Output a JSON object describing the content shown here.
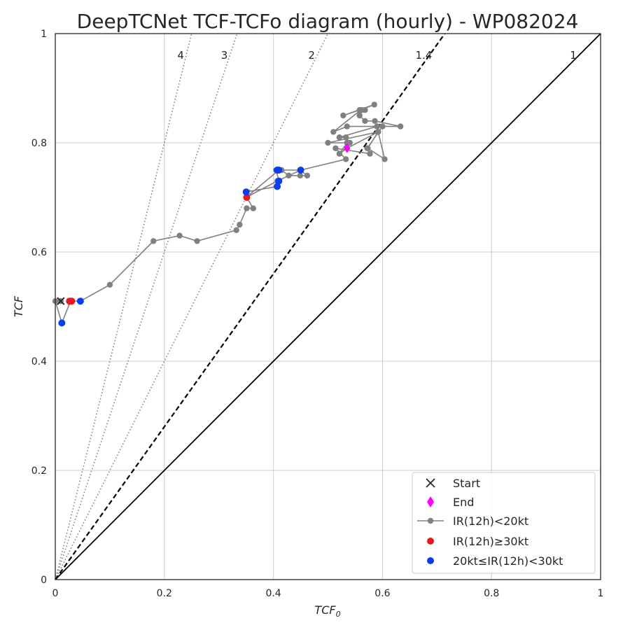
{
  "chart_data": {
    "type": "scatter",
    "title": "DeepTCNet TCF-TCFo diagram (hourly) - WP082024",
    "xlabel": "TCF",
    "xlabel_sub": "0",
    "ylabel": "TCF",
    "xlim": [
      0,
      1
    ],
    "ylim": [
      0,
      1
    ],
    "x_ticks": [
      0,
      0.2,
      0.4,
      0.6,
      0.8,
      1
    ],
    "y_ticks": [
      0,
      0.2,
      0.4,
      0.6,
      0.8,
      1
    ],
    "x_tick_labels": [
      "0",
      "0.2",
      "0.4",
      "0.6",
      "0.8",
      "1"
    ],
    "y_tick_labels": [
      "0",
      "0.2",
      "0.4",
      "0.6",
      "0.8",
      "1"
    ],
    "grid": true,
    "legend_position": "bottom-right",
    "ratio_lines": [
      {
        "ratio": 4,
        "label": "4",
        "style": "dotted",
        "color": "#808080"
      },
      {
        "ratio": 3,
        "label": "3",
        "style": "dotted",
        "color": "#808080"
      },
      {
        "ratio": 2,
        "label": "2",
        "style": "dotted",
        "color": "#808080"
      },
      {
        "ratio": 1.4,
        "label": "1.4",
        "style": "dashed",
        "color": "#000000"
      },
      {
        "ratio": 1,
        "label": "1",
        "style": "solid",
        "color": "#000000"
      }
    ],
    "track": {
      "name": "IR(12h)<20kt",
      "color": "#808080",
      "points": [
        [
          0.01,
          0.51
        ],
        [
          0.0,
          0.51
        ],
        [
          0.012,
          0.47
        ],
        [
          0.028,
          0.51
        ],
        [
          0.046,
          0.51
        ],
        [
          0.1,
          0.54
        ],
        [
          0.18,
          0.62
        ],
        [
          0.228,
          0.63
        ],
        [
          0.26,
          0.62
        ],
        [
          0.332,
          0.64
        ],
        [
          0.338,
          0.65
        ],
        [
          0.351,
          0.68
        ],
        [
          0.363,
          0.68
        ],
        [
          0.351,
          0.7
        ],
        [
          0.35,
          0.71
        ],
        [
          0.407,
          0.72
        ],
        [
          0.41,
          0.73
        ],
        [
          0.405,
          0.75
        ],
        [
          0.415,
          0.75
        ],
        [
          0.428,
          0.74
        ],
        [
          0.449,
          0.74
        ],
        [
          0.462,
          0.74
        ],
        [
          0.449,
          0.75
        ],
        [
          0.41,
          0.75
        ],
        [
          0.35,
          0.7
        ],
        [
          0.407,
          0.73
        ],
        [
          0.45,
          0.75
        ],
        [
          0.533,
          0.77
        ],
        [
          0.514,
          0.79
        ],
        [
          0.577,
          0.78
        ],
        [
          0.572,
          0.79
        ],
        [
          0.6,
          0.83
        ],
        [
          0.633,
          0.83
        ],
        [
          0.586,
          0.84
        ],
        [
          0.568,
          0.84
        ],
        [
          0.558,
          0.85
        ],
        [
          0.562,
          0.86
        ],
        [
          0.568,
          0.86
        ],
        [
          0.558,
          0.86
        ],
        [
          0.528,
          0.85
        ],
        [
          0.585,
          0.87
        ],
        [
          0.56,
          0.86
        ],
        [
          0.51,
          0.82
        ],
        [
          0.535,
          0.83
        ],
        [
          0.59,
          0.83
        ],
        [
          0.592,
          0.82
        ],
        [
          0.5,
          0.8
        ],
        [
          0.535,
          0.8
        ],
        [
          0.521,
          0.78
        ],
        [
          0.535,
          0.79
        ],
        [
          0.54,
          0.8
        ],
        [
          0.533,
          0.81
        ],
        [
          0.521,
          0.81
        ],
        [
          0.59,
          0.83
        ],
        [
          0.592,
          0.82
        ],
        [
          0.573,
          0.79
        ],
        [
          0.604,
          0.77
        ],
        [
          0.592,
          0.82
        ],
        [
          0.535,
          0.79
        ]
      ]
    },
    "red_points": {
      "name": "IR(12h)≥30kt",
      "color": "#e41a1c",
      "points": [
        [
          0.026,
          0.51
        ],
        [
          0.03,
          0.51
        ],
        [
          0.351,
          0.7
        ]
      ]
    },
    "blue_points": {
      "name": "20kt≤IR(12h)<30kt",
      "color": "#0a3cf0",
      "points": [
        [
          0.012,
          0.47
        ],
        [
          0.046,
          0.51
        ],
        [
          0.35,
          0.71
        ],
        [
          0.407,
          0.72
        ],
        [
          0.41,
          0.73
        ],
        [
          0.407,
          0.75
        ],
        [
          0.41,
          0.75
        ],
        [
          0.45,
          0.75
        ]
      ]
    },
    "start": {
      "name": "Start",
      "point": [
        0.01,
        0.51
      ],
      "color": "#262626"
    },
    "end": {
      "name": "End",
      "point": [
        0.535,
        0.79
      ],
      "color": "#ff00ff"
    },
    "legend": [
      {
        "label": "Start",
        "marker": "x"
      },
      {
        "label": "End",
        "marker": "diamond"
      },
      {
        "label": "IR(12h)<20kt",
        "marker": "line-dot"
      },
      {
        "label": "IR(12h)≥30kt",
        "marker": "dot-red"
      },
      {
        "label": "20kt≤IR(12h)<30kt",
        "marker": "dot-blue"
      }
    ]
  }
}
